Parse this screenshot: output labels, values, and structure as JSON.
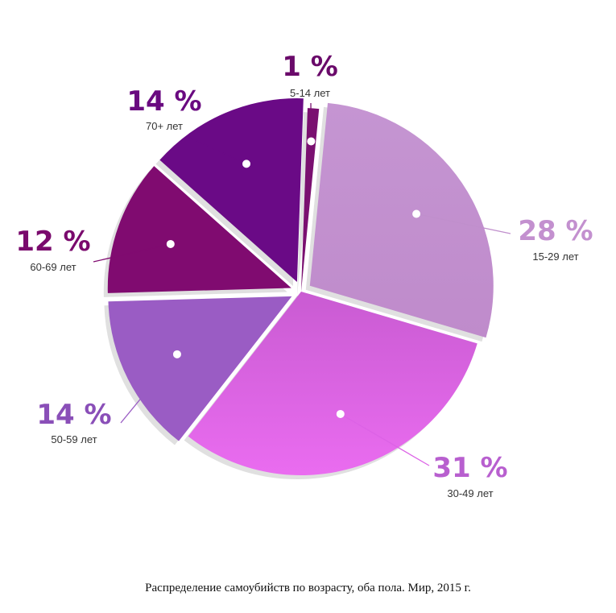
{
  "chart_data": {
    "type": "pie",
    "title": "",
    "caption": "Распределение самоубийств по возрасту, оба пола. Мир, 2015 г.",
    "start_angle_deg": 2,
    "slices": [
      {
        "label": "5-14 лет",
        "value": 1,
        "value_label": "1 %",
        "color": "#7a1070",
        "text_color": "#6a0a6a",
        "exploded": false
      },
      {
        "label": "15-29 лет",
        "value": 28,
        "value_label": "28 %",
        "color": "#c08fcc",
        "text_color": "#c390cf",
        "exploded": true
      },
      {
        "label": "30-49 лет",
        "value": 31,
        "value_label": "31 %",
        "color": "#dc62e6",
        "text_color": "#b85fcf",
        "exploded": false
      },
      {
        "label": "50-59 лет",
        "value": 14,
        "value_label": "14 %",
        "color": "#9a5cc4",
        "text_color": "#8a4fb8",
        "exploded": true
      },
      {
        "label": "60-69 лет",
        "value": 12,
        "value_label": "12 %",
        "color": "#800b70",
        "text_color": "#7a0a6d",
        "exploded": true
      },
      {
        "label": "70+ лет",
        "value": 14,
        "value_label": "14 %",
        "color": "#6a0a86",
        "text_color": "#6a0a80",
        "exploded": true
      }
    ]
  }
}
